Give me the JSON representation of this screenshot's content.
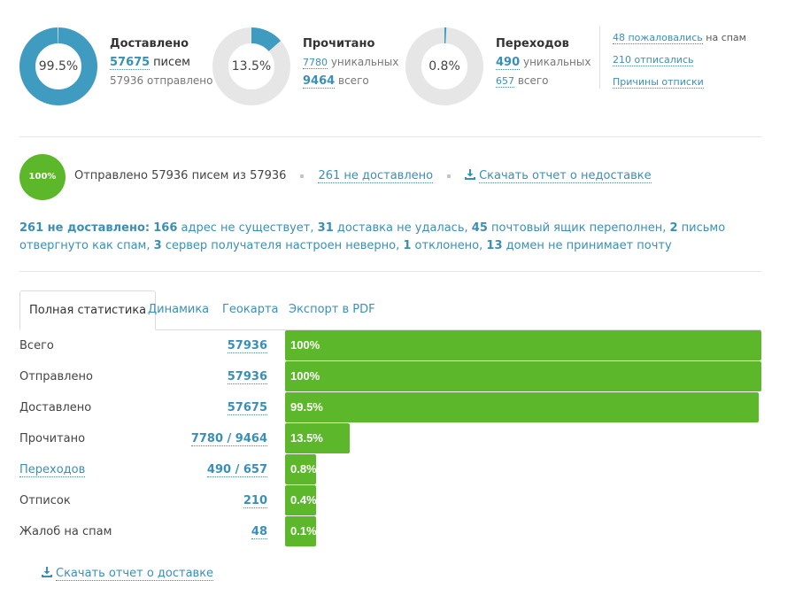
{
  "colors": {
    "accent": "#3a8fb7",
    "donut_fill": "#3f9cc0",
    "donut_track": "#e6e6e6",
    "bar": "#5cb82a"
  },
  "stats": [
    {
      "pct_text": "99.5%",
      "pct": 0.995,
      "title": "Доставлено",
      "line1_num": "57675",
      "line1_text": "писем",
      "line2_num": "57936",
      "line2_text": "отправлено"
    },
    {
      "pct_text": "13.5%",
      "pct": 0.135,
      "title": "Прочитано",
      "line1_num": "7780",
      "line1_text": "уникальных",
      "line2_num": "9464",
      "line2_text": "всего"
    },
    {
      "pct_text": "0.8%",
      "pct": 0.008,
      "title": "Переходов",
      "line1_num": "490",
      "line1_text": "уникальных",
      "line2_num": "657",
      "line2_text": "всего"
    }
  ],
  "side_links": {
    "spam_link": "48 пожаловались",
    "spam_text": "на спам",
    "unsub_link": "210 отписались",
    "reasons_link": "Причины отписки"
  },
  "sent": {
    "badge": "100%",
    "text": "Отправлено 57936 писем из 57936",
    "not_delivered_link": "261 не доставлено",
    "download_link": "Скачать отчет о недоставке"
  },
  "undelivered": {
    "head": "261 не доставлено:",
    "items": [
      {
        "n": "166",
        "t": "адрес не существует,"
      },
      {
        "n": "31",
        "t": "доставка не удалась,"
      },
      {
        "n": "45",
        "t": "почтовый ящик переполнен,"
      },
      {
        "n": "2",
        "t": "письмо отвергнуто как спам,"
      },
      {
        "n": "3",
        "t": "сервер получателя настроен неверно,"
      },
      {
        "n": "1",
        "t": "отклонено,"
      },
      {
        "n": "13",
        "t": "домен не принимает почту"
      }
    ]
  },
  "tabs": [
    "Полная статистика",
    "Динамика",
    "Геокарта",
    "Экспорт в PDF"
  ],
  "table": [
    {
      "label": "Всего",
      "value": "57936",
      "pct_text": "100%",
      "pct": 1.0
    },
    {
      "label": "Отправлено",
      "value": "57936",
      "pct_text": "100%",
      "pct": 1.0
    },
    {
      "label": "Доставлено",
      "value": "57675",
      "pct_text": "99.5%",
      "pct": 0.995
    },
    {
      "label": "Прочитано",
      "value": "7780 / 9464",
      "pct_text": "13.5%",
      "pct": 0.135
    },
    {
      "label": "Переходов",
      "value": "490 / 657",
      "pct_text": "0.8%",
      "pct": 0.008
    },
    {
      "label": "Отписок",
      "value": "210",
      "pct_text": "0.4%",
      "pct": 0.004
    },
    {
      "label": "Жалоб на спам",
      "value": "48",
      "pct_text": "0.1%",
      "pct": 0.001
    }
  ],
  "download_delivery": "Скачать отчет о доставке"
}
